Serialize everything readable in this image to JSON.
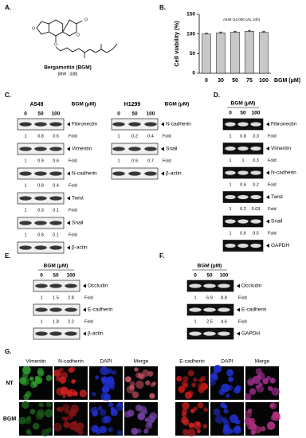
{
  "A": {
    "label": "A.",
    "compound": "Bergamottin (BGM)",
    "mw": "[MW : 338]"
  },
  "chart_data": {
    "type": "bar",
    "label": "B.",
    "ylabel": "Cell viability (%)",
    "xlabel": "BGM (μM)",
    "annotation": "A549 (10,000 c/w, 24h)",
    "categories": [
      "0",
      "30",
      "50",
      "75",
      "100"
    ],
    "values": [
      100,
      103,
      105,
      107,
      104
    ],
    "errors": [
      2,
      2,
      2,
      2,
      2
    ],
    "color": "#c8c8c8",
    "ylim": [
      0,
      150
    ],
    "yticks": [
      0,
      50,
      100,
      150
    ]
  },
  "C": {
    "label": "C.",
    "bgm": "BGM (μM)",
    "doses": [
      "0",
      "50",
      "100"
    ],
    "fold_label": "Fold",
    "groups": [
      {
        "cell_line": "A549",
        "rows": [
          {
            "protein": "Fibronectin",
            "fold": [
              1,
              0.8,
              0.6
            ]
          },
          {
            "protein": "Vimentin",
            "fold": [
              1,
              0.9,
              0.6
            ]
          },
          {
            "protein": "N-cadherin",
            "fold": [
              1,
              0.8,
              0.4
            ]
          },
          {
            "protein": "Twist",
            "fold": [
              1,
              0.3,
              0.1
            ]
          },
          {
            "protein": "Snail",
            "fold": [
              1,
              0.8,
              0.1
            ]
          },
          {
            "protein": "β-actin"
          }
        ]
      },
      {
        "cell_line": "H1299",
        "rows": [
          {
            "protein": "N-cadherin",
            "fold": [
              1,
              0.2,
              0.4
            ]
          },
          {
            "protein": "Snail",
            "fold": [
              1,
              0.9,
              0.7
            ]
          },
          {
            "protein": "β-actin"
          }
        ]
      }
    ]
  },
  "D": {
    "label": "D.",
    "bgm": "BGM (μM)",
    "doses": [
      "0",
      "50",
      "100"
    ],
    "fold_label": "Fold",
    "rows": [
      {
        "protein": "Fibronectin",
        "fold": [
          1,
          0.8,
          0.3
        ]
      },
      {
        "protein": "Vimentin",
        "fold": [
          1,
          1,
          0.3
        ]
      },
      {
        "protein": "N-cadherin",
        "fold": [
          1,
          0.6,
          0.2
        ]
      },
      {
        "protein": "Twist",
        "fold": [
          1,
          0.2,
          0.03
        ]
      },
      {
        "protein": "Snail",
        "fold": [
          1,
          0.6,
          0.5
        ]
      },
      {
        "protein": "GAPDH"
      }
    ]
  },
  "E": {
    "label": "E.",
    "bgm": "BGM (μM)",
    "doses": [
      "0",
      "50",
      "100"
    ],
    "fold_label": "Fold",
    "rows": [
      {
        "protein": "Occludin",
        "fold": [
          1,
          1.5,
          2.8
        ]
      },
      {
        "protein": "E-cadherin",
        "fold": [
          1,
          1.8,
          2.2
        ]
      },
      {
        "protein": "β-actin"
      }
    ]
  },
  "F": {
    "label": "F.",
    "bgm": "BGM (μM)",
    "doses": [
      "0",
      "50",
      "100"
    ],
    "fold_label": "Fold",
    "rows": [
      {
        "protein": "Occludin",
        "fold": [
          1,
          6.9,
          8.8
        ]
      },
      {
        "protein": "E-cadherin",
        "fold": [
          1,
          2.5,
          4.6
        ]
      },
      {
        "protein": "GAPDH"
      }
    ]
  },
  "G": {
    "label": "G.",
    "left_columns": [
      "Vimentin",
      "N-cadherin",
      "DAPI",
      "Merge"
    ],
    "right_columns": [
      "E-cadherin",
      "DAPI",
      "Merge"
    ],
    "rows": [
      "NT",
      "BGM"
    ]
  }
}
